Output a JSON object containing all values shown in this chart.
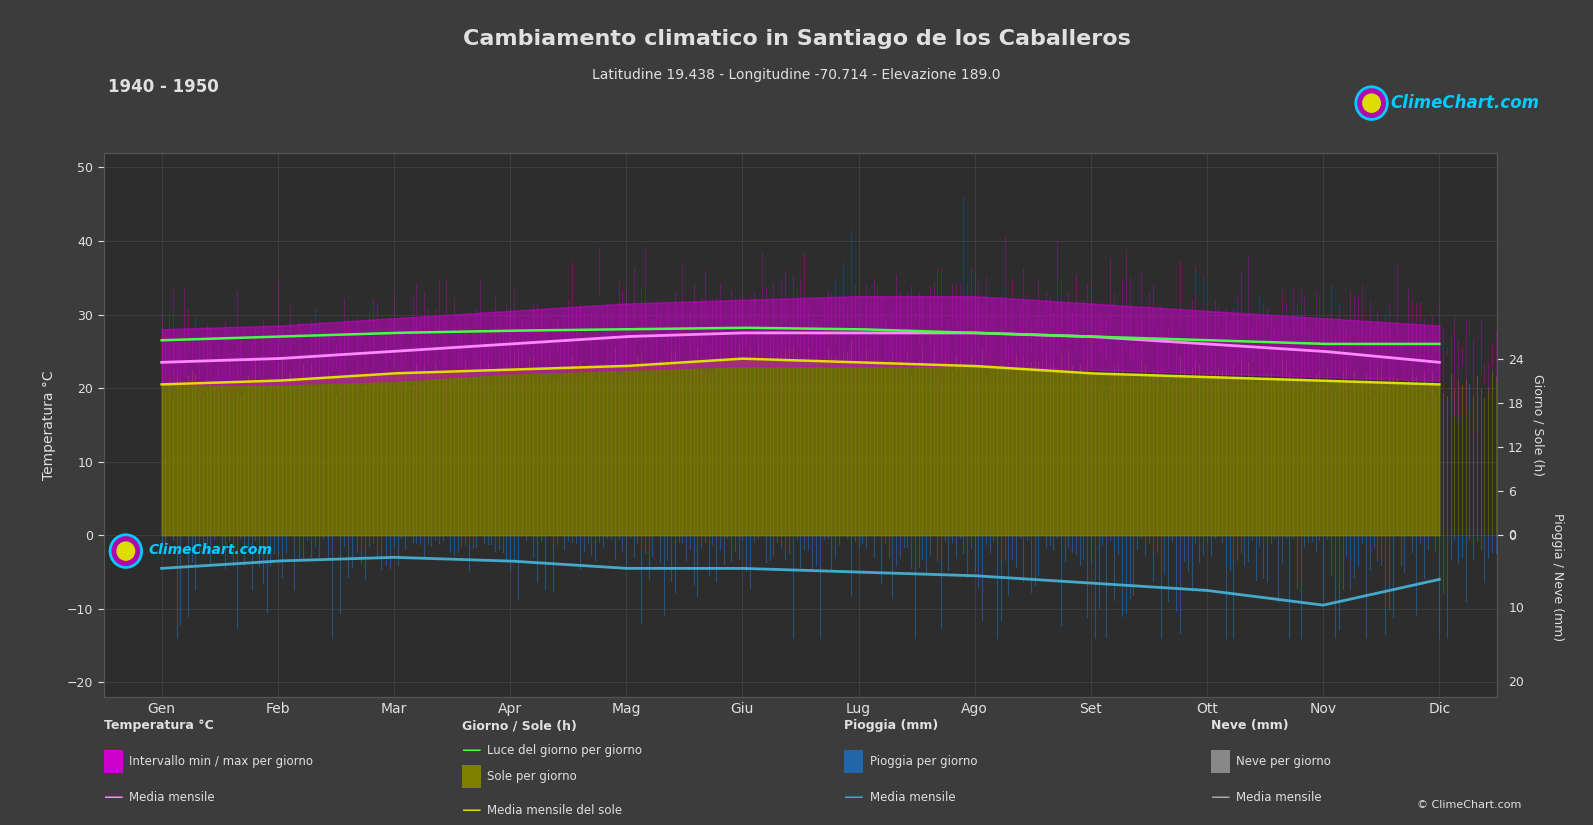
{
  "title": "Cambiamento climatico in Santiago de los Caballeros",
  "subtitle": "Latitudine 19.438 - Longitudine -70.714 - Elevazione 189.0",
  "year_range": "1940 - 1950",
  "bg_color": "#3c3c3c",
  "plot_bg_color": "#2d2d2d",
  "grid_color": "#555555",
  "text_color": "#e0e0e0",
  "months": [
    "Gen",
    "Feb",
    "Mar",
    "Apr",
    "Mag",
    "Giu",
    "Lug",
    "Ago",
    "Set",
    "Ott",
    "Nov",
    "Dic"
  ],
  "temp_ylim": [
    -22,
    52
  ],
  "temp_yticks": [
    -20,
    -10,
    0,
    10,
    20,
    30,
    40,
    50
  ],
  "temp_max_monthly": [
    28.0,
    28.5,
    29.5,
    30.5,
    31.5,
    32.0,
    32.5,
    32.5,
    31.5,
    30.5,
    29.5,
    28.5
  ],
  "temp_min_monthly": [
    20.5,
    20.5,
    21.0,
    22.0,
    22.5,
    23.0,
    23.0,
    23.0,
    22.5,
    22.0,
    21.5,
    21.0
  ],
  "temp_mean_monthly": [
    23.5,
    24.0,
    25.0,
    26.0,
    27.0,
    27.5,
    27.5,
    27.5,
    27.0,
    26.0,
    25.0,
    23.5
  ],
  "daylight_monthly": [
    26.5,
    27.0,
    27.5,
    27.8,
    28.0,
    28.2,
    28.0,
    27.5,
    27.0,
    26.5,
    26.0,
    26.0
  ],
  "sun_mean_monthly": [
    20.5,
    21.0,
    22.0,
    22.5,
    23.0,
    24.0,
    23.5,
    23.0,
    22.0,
    21.5,
    21.0,
    20.5
  ],
  "rain_mean_monthly_neg": [
    -4.5,
    -3.5,
    -3.0,
    -3.5,
    -4.5,
    -4.5,
    -5.0,
    -5.5,
    -6.5,
    -7.5,
    -9.5,
    -6.0
  ],
  "temp_band_color": "#cc00cc",
  "temp_mean_color": "#ff88ff",
  "sun_fill_color": "#808000",
  "sun_mean_color": "#dddd00",
  "daylight_line_color": "#44ff44",
  "rain_bar_color": "#2266aa",
  "rain_mean_color": "#44aacc",
  "snow_bar_color": "#888888",
  "snow_mean_color": "#aaaaaa",
  "logo_color": "#00ccff",
  "copyright_text": "© ClimeChart.com",
  "legend_temp_label": "Temperatura °C",
  "legend_temp_band": "Intervallo min / max per giorno",
  "legend_temp_mean": "Media mensile",
  "legend_sun_label": "Giorno / Sole (h)",
  "legend_daylight": "Luce del giorno per giorno",
  "legend_sun_daily": "Sole per giorno",
  "legend_sun_mean": "Media mensile del sole",
  "legend_rain_label": "Pioggia (mm)",
  "legend_rain_daily": "Pioggia per giorno",
  "legend_rain_mean": "Media mensile",
  "legend_snow_label": "Neve (mm)",
  "legend_snow_daily": "Neve per giorno",
  "legend_snow_mean": "Media mensile",
  "left_ylabel": "Temperatura °C",
  "right_ylabel_sun": "Giorno / Sole (h)",
  "right_ylabel_rain": "Pioggia / Neve (mm)"
}
